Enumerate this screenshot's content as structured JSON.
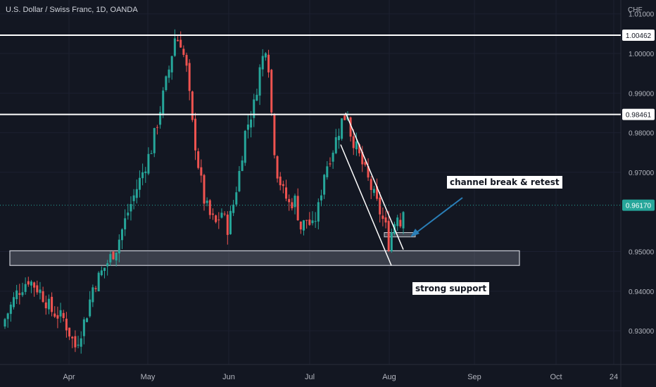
{
  "header": {
    "symbol_title": "U.S. Dollar / Swiss Franc, 1D, OANDA",
    "currency": "CHF"
  },
  "colors": {
    "background": "#131722",
    "up": "#26a69a",
    "down": "#ef5350",
    "level": "#ffffff",
    "price_tag": "#26a69a",
    "arrow": "#2a7fb8"
  },
  "chart_data": {
    "type": "candlestick",
    "title": "U.S. Dollar / Swiss Franc, 1D, OANDA",
    "y_unit": "CHF",
    "ylim": [
      0.9215,
      1.0135
    ],
    "y_ticks": [
      "1.01000",
      "1.00000",
      "0.99000",
      "0.98000",
      "0.97000",
      "0.95000",
      "0.94000",
      "0.93000"
    ],
    "y_tick_values": [
      1.01,
      1.0,
      0.99,
      0.98,
      0.97,
      0.95,
      0.94,
      0.93
    ],
    "x_ticks": [
      "Apr",
      "May",
      "Jun",
      "Jul",
      "Aug",
      "Sep",
      "Oct",
      "24"
    ],
    "horizontal_levels": [
      {
        "label": "1.00462",
        "value": 1.00462
      },
      {
        "label": "0.98461",
        "value": 0.98461
      }
    ],
    "current_price": {
      "label": "0.96170",
      "value": 0.9617
    },
    "support_zone": {
      "low": 0.9465,
      "high": 0.9502
    },
    "retest_zone": {
      "low": 0.9537,
      "high": 0.9548
    },
    "annotations": [
      "channel break & retest",
      "strong support"
    ],
    "close_path": [
      [
        0,
        0.933
      ],
      [
        4,
        0.9395
      ],
      [
        8,
        0.943
      ],
      [
        12,
        0.94
      ],
      [
        16,
        0.935
      ],
      [
        20,
        0.933
      ],
      [
        24,
        0.926
      ],
      [
        26,
        0.93
      ],
      [
        28,
        0.9345
      ],
      [
        30,
        0.941
      ],
      [
        34,
        0.946
      ],
      [
        38,
        0.951
      ],
      [
        42,
        0.96
      ],
      [
        46,
        0.968
      ],
      [
        50,
        0.976
      ],
      [
        53,
        0.986
      ],
      [
        56,
        0.996
      ],
      [
        58,
        1.004
      ],
      [
        60,
        1.003
      ],
      [
        62,
        0.996
      ],
      [
        64,
        0.982
      ],
      [
        66,
        0.972
      ],
      [
        68,
        0.963
      ],
      [
        70,
        0.959
      ],
      [
        72,
        0.957
      ],
      [
        74,
        0.96
      ],
      [
        76,
        0.956
      ],
      [
        78,
        0.962
      ],
      [
        80,
        0.97
      ],
      [
        82,
        0.98
      ],
      [
        85,
        0.987
      ],
      [
        87,
        0.996
      ],
      [
        89,
        1.002
      ],
      [
        90,
        0.997
      ],
      [
        91,
        0.985
      ],
      [
        92,
        0.976
      ],
      [
        93,
        0.97
      ],
      [
        95,
        0.965
      ],
      [
        97,
        0.962
      ],
      [
        99,
        0.963
      ],
      [
        101,
        0.956
      ],
      [
        103,
        0.958
      ],
      [
        105,
        0.956
      ],
      [
        107,
        0.961
      ],
      [
        109,
        0.97
      ],
      [
        112,
        0.976
      ],
      [
        115,
        0.983
      ],
      [
        117,
        0.985
      ],
      [
        118,
        0.98
      ],
      [
        120,
        0.976
      ],
      [
        122,
        0.972
      ],
      [
        124,
        0.968
      ],
      [
        126,
        0.964
      ],
      [
        128,
        0.96
      ],
      [
        130,
        0.956
      ],
      [
        131,
        0.952
      ],
      [
        132,
        0.955
      ],
      [
        134,
        0.96
      ],
      [
        135,
        0.957
      ],
      [
        136,
        0.9617
      ]
    ]
  }
}
